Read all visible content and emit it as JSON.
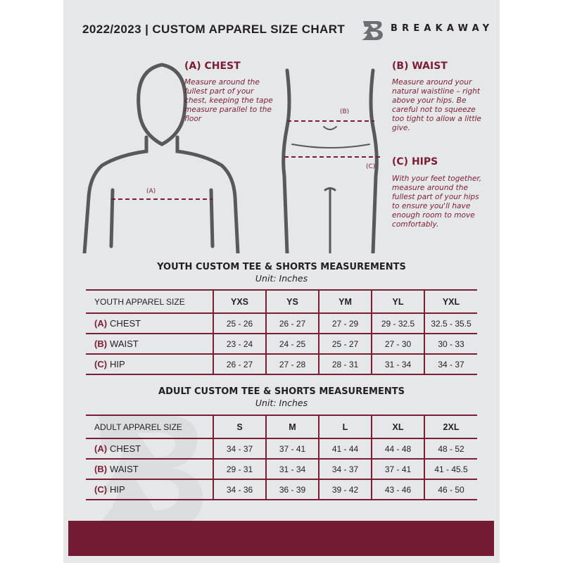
{
  "header": {
    "title": "2022/2023  |  CUSTOM APPAREL SIZE CHART",
    "brand": "BREAKAWAY",
    "logo_letter": "B"
  },
  "chest": {
    "heading": "(A) CHEST",
    "text": "Measure around the fullest part of your chest, keeping the tape measure parallel to the floor",
    "marker": "(A)"
  },
  "waist": {
    "heading": "(B) WAIST",
    "text": "Measure around your natural waistline – right above your hips. Be careful not to squeeze too tight to allow a little give.",
    "marker": "(B)"
  },
  "hips": {
    "heading": "(C) HIPS",
    "text": "With your feet together, measure around the fullest part of your hips to ensure you'll have enough room to move comfortably.",
    "marker": "(C)"
  },
  "youth": {
    "title": "YOUTH CUSTOM TEE & SHORTS MEASUREMENTS",
    "unit": "Unit: Inches",
    "size_label": "YOUTH APPAREL SIZE",
    "sizes": [
      "YXS",
      "YS",
      "YM",
      "YL",
      "YXL"
    ],
    "rows": [
      {
        "code": "(A)",
        "name": "CHEST",
        "values": [
          "25 - 26",
          "26 - 27",
          "27 - 29",
          "29 - 32.5",
          "32.5 - 35.5"
        ]
      },
      {
        "code": "(B)",
        "name": "WAIST",
        "values": [
          "23 - 24",
          "24 - 25",
          "25 - 27",
          "27 - 30",
          "30 - 33"
        ]
      },
      {
        "code": "(C)",
        "name": "HIP",
        "values": [
          "26 - 27",
          "27 - 28",
          "28 - 31",
          "31 - 34",
          "34 - 37"
        ]
      }
    ]
  },
  "adult": {
    "title": "ADULT CUSTOM TEE & SHORTS MEASUREMENTS",
    "unit": "Unit: Inches",
    "size_label": "ADULT APPAREL SIZE",
    "sizes": [
      "S",
      "M",
      "L",
      "XL",
      "2XL"
    ],
    "rows": [
      {
        "code": "(A)",
        "name": "CHEST",
        "values": [
          "34 - 37",
          "37 - 41",
          "41 - 44",
          "44 - 48",
          "48 - 52"
        ]
      },
      {
        "code": "(B)",
        "name": "WAIST",
        "values": [
          "29 - 31",
          "31 - 34",
          "34 - 37",
          "37 - 41",
          "41 - 45.5"
        ]
      },
      {
        "code": "(C)",
        "name": "HIP",
        "values": [
          "34 - 36",
          "36 - 39",
          "39 - 42",
          "43 - 46",
          "46 - 50"
        ]
      }
    ]
  },
  "colors": {
    "accent": "#7b1e33",
    "background": "#e6e7e8",
    "bar": "#731b32"
  }
}
